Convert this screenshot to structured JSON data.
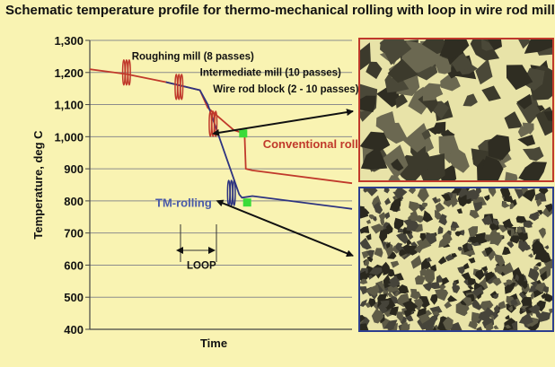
{
  "title": "Schematic temperature profile for thermo-mechanical rolling with loop in wire rod mill",
  "chart_data": {
    "type": "line",
    "ylabel": "Temperature, deg C",
    "xlabel": "Time",
    "ylim": [
      400,
      1300
    ],
    "y_ticks": [
      "400",
      "500",
      "600",
      "700",
      "800",
      "900",
      "1,000",
      "1,100",
      "1,200",
      "1,300"
    ],
    "y_tick_values": [
      400,
      500,
      600,
      700,
      800,
      900,
      1000,
      1100,
      1200,
      1300
    ],
    "xlim": [
      0,
      100
    ],
    "grid": true,
    "series": [
      {
        "name": "Conventional rolling",
        "color": "#c0392b",
        "points": [
          [
            0,
            1210
          ],
          [
            14,
            1195
          ],
          [
            29,
            1170
          ],
          [
            42,
            1145
          ],
          [
            45,
            1090
          ],
          [
            55,
            1020
          ],
          [
            59,
            1010
          ],
          [
            59.5,
            900
          ],
          [
            62,
            895
          ],
          [
            100,
            855
          ]
        ]
      },
      {
        "name": "TM-rolling",
        "color": "#2e3480",
        "points": [
          [
            29,
            1170
          ],
          [
            42,
            1145
          ],
          [
            45,
            1100
          ],
          [
            57,
            820
          ],
          [
            58,
            810
          ],
          [
            62,
            815
          ],
          [
            100,
            775
          ]
        ]
      }
    ],
    "annotations": [
      {
        "text": "Roughing mill (8 passes)",
        "x": 16,
        "y": 1240
      },
      {
        "text": "Intermediate mill (10 passes)",
        "x": 42,
        "y": 1190
      },
      {
        "text": "Wire rod block (2 - 10 passes)",
        "x": 47,
        "y": 1138
      },
      {
        "text": "Conventional rolling",
        "x": 66,
        "y": 965,
        "color": "#c0392b"
      },
      {
        "text": "TM-rolling",
        "x": 25,
        "y": 782,
        "color": "#4a5aa8"
      },
      {
        "text": "LOOP",
        "x": 37,
        "y": 588
      }
    ],
    "passes": [
      {
        "x": 14,
        "y": 1200,
        "color": "#c0392b"
      },
      {
        "x": 34,
        "y": 1155,
        "color": "#c0392b"
      },
      {
        "x": 47,
        "y": 1040,
        "color": "#c0392b"
      },
      {
        "x": 54,
        "y": 825,
        "color": "#2e3480"
      }
    ],
    "markers": [
      {
        "x": 58.5,
        "y": 1010,
        "color": "#3adb3a"
      },
      {
        "x": 60,
        "y": 795,
        "color": "#3adb3a"
      }
    ]
  }
}
